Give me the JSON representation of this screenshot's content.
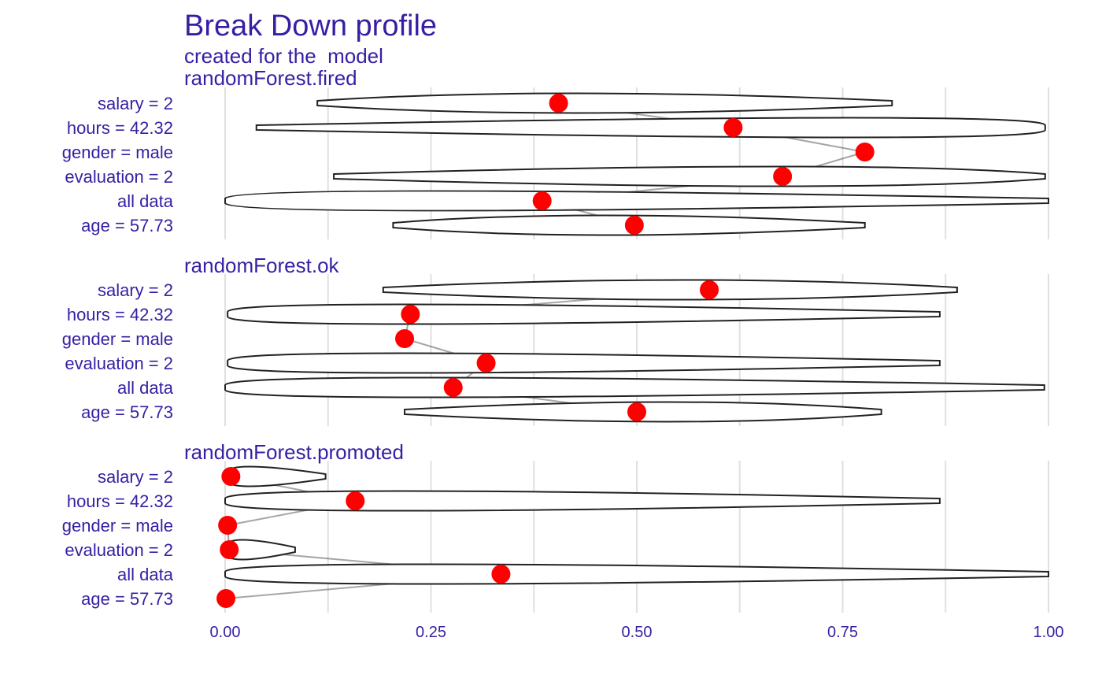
{
  "chart_data": {
    "type": "violin",
    "title": "Break Down profile",
    "subtitle": "created for the  model",
    "x_ticks": [
      "0.00",
      "0.25",
      "0.50",
      "0.75",
      "1.00"
    ],
    "xlim": [
      0,
      1
    ],
    "variables": [
      "salary = 2",
      "hours = 42.32",
      "gender = male",
      "evaluation = 2",
      "all data",
      "age = 57.73"
    ],
    "panels": [
      {
        "label": "randomForest.fired",
        "rows": [
          {
            "variable": "salary = 2",
            "min": 0.112,
            "max": 0.81,
            "point": 0.405,
            "peak": 0.4
          },
          {
            "variable": "hours = 42.32",
            "min": 0.038,
            "max": 0.996,
            "point": 0.617,
            "peak": 1.0
          },
          {
            "variable": "gender = male",
            "min": 0.777,
            "max": 0.777,
            "point": 0.777,
            "peak": 0.0
          },
          {
            "variable": "evaluation = 2",
            "min": 0.132,
            "max": 0.996,
            "point": 0.677,
            "peak": 0.75
          },
          {
            "variable": "all data",
            "min": 0.0,
            "max": 1.0,
            "point": 0.385,
            "peak": 0.01
          },
          {
            "variable": "age = 57.73",
            "min": 0.204,
            "max": 0.777,
            "point": 0.497,
            "peak": 0.4
          }
        ]
      },
      {
        "label": "randomForest.ok",
        "rows": [
          {
            "variable": "salary = 2",
            "min": 0.192,
            "max": 0.889,
            "point": 0.588,
            "peak": 0.55
          },
          {
            "variable": "hours = 42.32",
            "min": 0.003,
            "max": 0.868,
            "point": 0.225,
            "peak": 0.0
          },
          {
            "variable": "gender = male",
            "min": 0.218,
            "max": 0.218,
            "point": 0.218,
            "peak": 0.0
          },
          {
            "variable": "evaluation = 2",
            "min": 0.003,
            "max": 0.868,
            "point": 0.317,
            "peak": 0.0
          },
          {
            "variable": "all data",
            "min": 0.0,
            "max": 0.995,
            "point": 0.277,
            "peak": 0.0
          },
          {
            "variable": "age = 57.73",
            "min": 0.218,
            "max": 0.797,
            "point": 0.5,
            "peak": 0.6
          }
        ]
      },
      {
        "label": "randomForest.promoted",
        "rows": [
          {
            "variable": "salary = 2",
            "min": 0.0,
            "max": 0.122,
            "point": 0.007,
            "peak": 0.0
          },
          {
            "variable": "hours = 42.32",
            "min": 0.0,
            "max": 0.868,
            "point": 0.158,
            "peak": 0.0
          },
          {
            "variable": "gender = male",
            "min": 0.0,
            "max": 0.0,
            "point": 0.003,
            "peak": 0.0
          },
          {
            "variable": "evaluation = 2",
            "min": 0.0,
            "max": 0.085,
            "point": 0.005,
            "peak": 0.0
          },
          {
            "variable": "all data",
            "min": 0.0,
            "max": 1.0,
            "point": 0.335,
            "peak": 0.0
          },
          {
            "variable": "age = 57.73",
            "min": 0.0,
            "max": 0.0,
            "point": 0.001,
            "peak": 0.0
          }
        ]
      }
    ],
    "colors": {
      "text": "#371ea3",
      "point": "#ff0000",
      "violin_stroke": "#222222",
      "grid": "#e0e0e0"
    }
  }
}
